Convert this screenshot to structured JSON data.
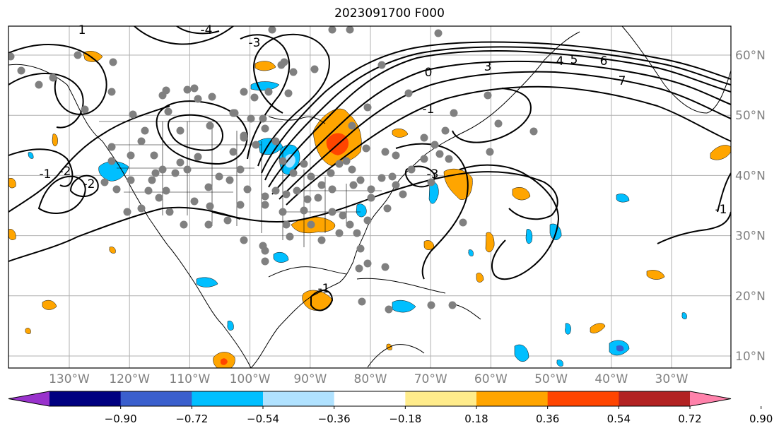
{
  "title": "2023091700 F000",
  "lon_labels": [
    "130°W",
    "120°W",
    "110°W",
    "100°W",
    "90°W",
    "80°W",
    "70°W",
    "60°W",
    "50°W",
    "40°W",
    "30°W"
  ],
  "lat_labels": [
    "60°N",
    "50°N",
    "40°N",
    "30°N",
    "20°N",
    "10°N"
  ],
  "contour_labels": [
    "-1",
    "-2",
    "-2",
    "-3",
    "0",
    "-4",
    "-3",
    "4",
    "5",
    "6",
    "7",
    "-1",
    "-1",
    "1",
    "3",
    "-1"
  ],
  "colorbar": {
    "colors": [
      "#9932cc",
      "#000080",
      "#3a5fcd",
      "#00bfff",
      "#b0e2ff",
      "#ffffff",
      "#ffec8b",
      "#ffa500",
      "#ff4500",
      "#b22222",
      "#ff82ab"
    ],
    "tick_labels": [
      "−0.90",
      "−0.72",
      "−0.54",
      "−0.36",
      "−0.18",
      "0.18",
      "0.36",
      "0.54",
      "0.72",
      "0.90"
    ]
  },
  "colors": {
    "axis_label": "#808080",
    "station": "#808080",
    "contour": "#000000",
    "grid": "#b0b0b0"
  }
}
